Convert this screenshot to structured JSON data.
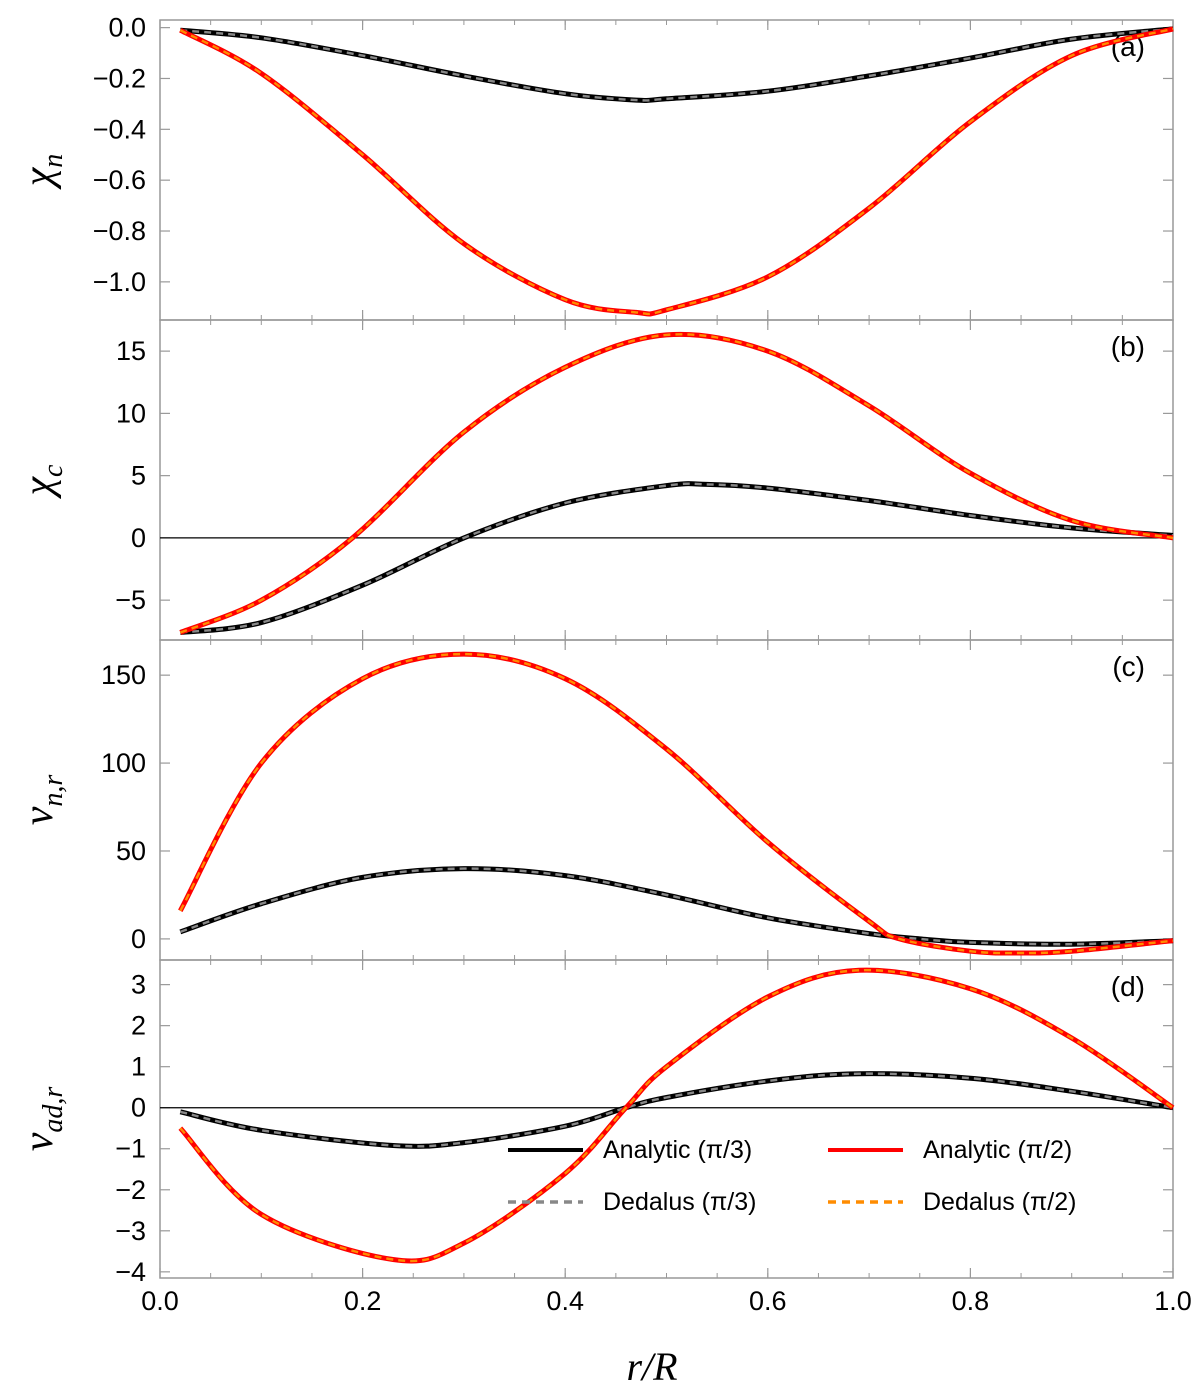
{
  "chart_data": [
    {
      "type": "line",
      "panel_label": "(a)",
      "ylabel": "χ",
      "ylabel_sub": "n",
      "ylim": [
        -1.15,
        0.03
      ],
      "yticks": [
        0.0,
        -0.2,
        -0.4,
        -0.6,
        -0.8,
        -1.0
      ],
      "ytick_labels": [
        "0.0",
        "−0.2",
        "−0.4",
        "−0.6",
        "−0.8",
        "−1.0"
      ],
      "zero_line": false,
      "series": [
        {
          "name": "Analytic (π/3)",
          "x": [
            0.02,
            0.1,
            0.2,
            0.3,
            0.4,
            0.47,
            0.5,
            0.6,
            0.7,
            0.8,
            0.9,
            1.0
          ],
          "y": [
            -0.01,
            -0.04,
            -0.11,
            -0.19,
            -0.26,
            -0.285,
            -0.28,
            -0.25,
            -0.19,
            -0.12,
            -0.045,
            -0.005
          ]
        },
        {
          "name": "Analytic (π/2)",
          "x": [
            0.02,
            0.1,
            0.2,
            0.3,
            0.4,
            0.47,
            0.5,
            0.6,
            0.7,
            0.8,
            0.9,
            1.0
          ],
          "y": [
            -0.01,
            -0.18,
            -0.5,
            -0.85,
            -1.07,
            -1.12,
            -1.11,
            -0.98,
            -0.71,
            -0.37,
            -0.11,
            -0.005
          ]
        }
      ]
    },
    {
      "type": "line",
      "panel_label": "(b)",
      "ylabel": "χ",
      "ylabel_sub": "c",
      "ylim": [
        -8.2,
        17.5
      ],
      "yticks": [
        15,
        10,
        5,
        0,
        -5
      ],
      "ytick_labels": [
        "15",
        "10",
        "5",
        "0",
        "−5"
      ],
      "zero_line": true,
      "series": [
        {
          "name": "Analytic (π/3)",
          "x": [
            0.02,
            0.1,
            0.2,
            0.3,
            0.4,
            0.5,
            0.54,
            0.6,
            0.7,
            0.8,
            0.9,
            1.0
          ],
          "y": [
            -7.6,
            -6.8,
            -3.8,
            0.0,
            2.8,
            4.2,
            4.3,
            4.0,
            3.0,
            1.8,
            0.8,
            0.2
          ]
        },
        {
          "name": "Analytic (π/2)",
          "x": [
            0.02,
            0.1,
            0.19,
            0.3,
            0.4,
            0.5,
            0.6,
            0.7,
            0.8,
            0.9,
            1.0
          ],
          "y": [
            -7.6,
            -5.0,
            0.0,
            8.5,
            13.7,
            16.3,
            15.0,
            10.6,
            5.2,
            1.4,
            0.0
          ]
        }
      ]
    },
    {
      "type": "line",
      "panel_label": "(c)",
      "ylabel": "v",
      "ylabel_sub": "n,r",
      "ylim": [
        -12,
        170
      ],
      "yticks": [
        150,
        100,
        50,
        0
      ],
      "ytick_labels": [
        "150",
        "100",
        "50",
        "0"
      ],
      "zero_line": false,
      "series": [
        {
          "name": "Analytic (π/3)",
          "x": [
            0.02,
            0.1,
            0.2,
            0.3,
            0.4,
            0.5,
            0.6,
            0.7,
            0.75,
            0.8,
            0.9,
            1.0
          ],
          "y": [
            4,
            20,
            35,
            40,
            36,
            25,
            12,
            3,
            0,
            -2,
            -3,
            -1
          ]
        },
        {
          "name": "Analytic (π/2)",
          "x": [
            0.02,
            0.1,
            0.2,
            0.3,
            0.4,
            0.5,
            0.6,
            0.7,
            0.73,
            0.8,
            0.85,
            0.9,
            1.0
          ],
          "y": [
            16,
            100,
            148,
            162,
            148,
            108,
            55,
            10,
            0,
            -7,
            -8,
            -7,
            -1
          ]
        }
      ]
    },
    {
      "type": "line",
      "panel_label": "(d)",
      "ylabel": "v",
      "ylabel_sub": "ad,r",
      "ylim": [
        -4.15,
        3.6
      ],
      "yticks": [
        3,
        2,
        1,
        0,
        -1,
        -2,
        -3,
        -4
      ],
      "ytick_labels": [
        "3",
        "2",
        "1",
        "0",
        "−1",
        "−2",
        "−3",
        "−4"
      ],
      "zero_line": true,
      "series": [
        {
          "name": "Analytic (π/3)",
          "x": [
            0.02,
            0.1,
            0.23,
            0.3,
            0.4,
            0.46,
            0.5,
            0.6,
            0.69,
            0.8,
            0.9,
            1.0
          ],
          "y": [
            -0.1,
            -0.55,
            -0.92,
            -0.85,
            -0.45,
            0.0,
            0.25,
            0.65,
            0.83,
            0.72,
            0.4,
            0.0
          ]
        },
        {
          "name": "Analytic (π/2)",
          "x": [
            0.02,
            0.1,
            0.23,
            0.3,
            0.4,
            0.46,
            0.5,
            0.6,
            0.69,
            0.8,
            0.9,
            1.0
          ],
          "y": [
            -0.5,
            -2.6,
            -3.7,
            -3.3,
            -1.6,
            0.0,
            1.0,
            2.7,
            3.35,
            2.9,
            1.7,
            0.0
          ]
        }
      ]
    }
  ],
  "xaxis": {
    "label": "r/R",
    "xlim": [
      0.0,
      1.0
    ],
    "ticks": [
      0.0,
      0.2,
      0.4,
      0.6,
      0.8,
      1.0
    ],
    "tick_labels": [
      "0.0",
      "0.2",
      "0.4",
      "0.6",
      "0.8",
      "1.0"
    ]
  },
  "legend": {
    "placement": "lower-right of panel (d)",
    "entries": [
      {
        "label": "Analytic (π/3)",
        "color": "#000000",
        "style": "solid"
      },
      {
        "label": "Analytic (π/2)",
        "color": "#ff0000",
        "style": "solid"
      },
      {
        "label": "Dedalus (π/3)",
        "color": "#888888",
        "style": "dashed"
      },
      {
        "label": "Dedalus (π/2)",
        "color": "#ff8c00",
        "style": "dashed"
      }
    ]
  },
  "colors": {
    "analytic_pi3": "#000000",
    "dedalus_pi3": "#888888",
    "analytic_pi2": "#ff0000",
    "dedalus_pi2": "#ff8c00",
    "frame": "#999999"
  }
}
